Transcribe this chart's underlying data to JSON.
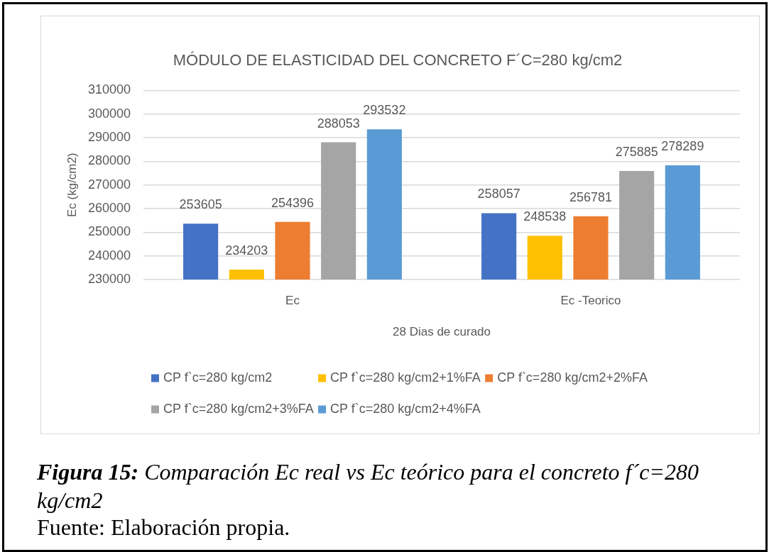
{
  "chart_data": {
    "type": "bar",
    "title": "MÓDULO DE ELASTICIDAD DEL CONCRETO F´C=280 kg/cm2",
    "xlabel": "28 Dias de curado",
    "ylabel": "Ec (kg/cm2)",
    "categories": [
      "Ec",
      "Ec -Teorico"
    ],
    "series": [
      {
        "name": "CP f`c=280 kg/cm2",
        "color": "#4472c4",
        "values": [
          253605,
          258057
        ]
      },
      {
        "name": "CP f`c=280 kg/cm2+1%FA",
        "color": "#ffc000",
        "values": [
          234203,
          248538
        ]
      },
      {
        "name": "CP f`c=280 kg/cm2+2%FA",
        "color": "#ed7d31",
        "values": [
          254396,
          256781
        ]
      },
      {
        "name": "CP f`c=280 kg/cm2+3%FA",
        "color": "#a5a5a5",
        "values": [
          288053,
          275885
        ]
      },
      {
        "name": "CP f`c=280 kg/cm2+4%FA",
        "color": "#5b9bd5",
        "values": [
          293532,
          278289
        ]
      }
    ],
    "ylim": [
      230000,
      310000
    ],
    "yticks": [
      230000,
      240000,
      250000,
      260000,
      270000,
      280000,
      290000,
      300000,
      310000
    ],
    "grid": "y",
    "legend": "bottom",
    "data_labels": true,
    "annotations": [
      "Figura 15: Comparación Ec real vs Ec teórico para el concreto f´c=280 kg/cm2",
      "Fuente: Elaboración propia."
    ]
  }
}
